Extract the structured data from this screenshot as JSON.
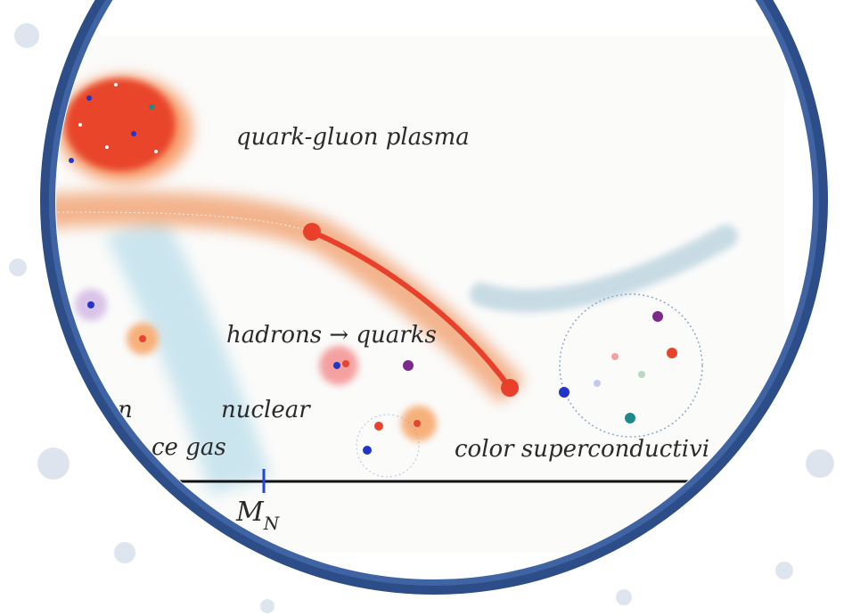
{
  "labels": {
    "quark_gluon_plasma": "quark-gluon plasma",
    "hadrons_quarks": "hadrons → quarks",
    "nuclear": "nuclear",
    "color_superconductivity": "color superconductivi",
    "hadron_fragment": "n",
    "resonance_gas_fragment": "ce gas",
    "axis_mark": {
      "main": "M",
      "sub": "N"
    }
  }
}
